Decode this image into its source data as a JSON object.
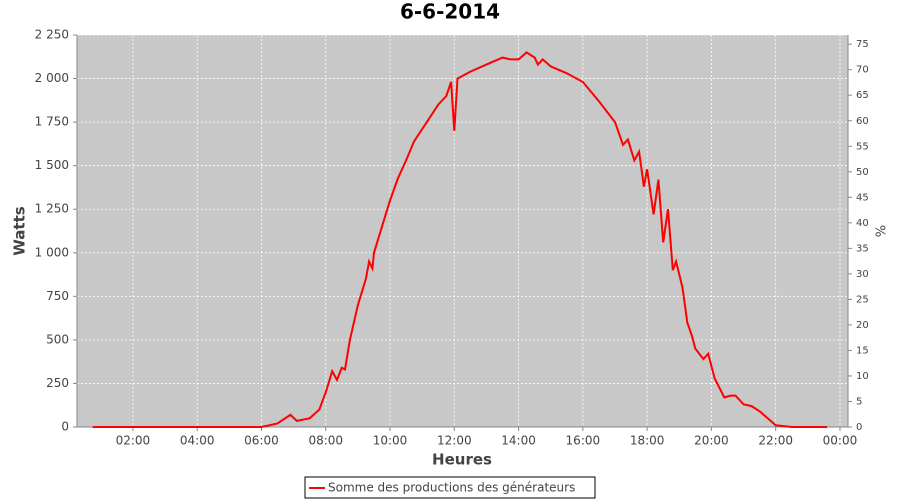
{
  "chart_data": {
    "type": "line",
    "title": "6-6-2014",
    "xlabel": "Heures",
    "ylabel": "Watts",
    "y2label": "%",
    "x": [
      0.75,
      2,
      3,
      4,
      5,
      6,
      6.5,
      6.9,
      7.1,
      7.5,
      7.8,
      8.0,
      8.2,
      8.35,
      8.5,
      8.6,
      8.75,
      9.0,
      9.25,
      9.35,
      9.45,
      9.5,
      9.75,
      10.0,
      10.25,
      10.5,
      10.75,
      11.0,
      11.25,
      11.5,
      11.75,
      11.9,
      12.0,
      12.1,
      12.5,
      13.0,
      13.5,
      13.75,
      14.0,
      14.25,
      14.5,
      14.6,
      14.75,
      15.0,
      15.5,
      16.0,
      16.5,
      17.0,
      17.25,
      17.4,
      17.6,
      17.75,
      17.9,
      18.0,
      18.2,
      18.35,
      18.5,
      18.65,
      18.8,
      18.9,
      19.1,
      19.25,
      19.4,
      19.5,
      19.75,
      19.9,
      20.1,
      20.4,
      20.6,
      20.75,
      21.0,
      21.25,
      21.5,
      21.75,
      22.0,
      22.5,
      23.6
    ],
    "series": [
      {
        "name": "Somme des productions des  générateurs",
        "color": "#ff0000",
        "values": [
          0,
          0,
          0,
          0,
          0,
          0,
          20,
          70,
          35,
          50,
          100,
          200,
          320,
          270,
          340,
          330,
          500,
          700,
          850,
          950,
          910,
          1000,
          1150,
          1300,
          1430,
          1530,
          1640,
          1710,
          1780,
          1850,
          1900,
          1980,
          1700,
          2000,
          2040,
          2080,
          2120,
          2110,
          2110,
          2150,
          2120,
          2080,
          2110,
          2070,
          2030,
          1980,
          1870,
          1750,
          1620,
          1650,
          1530,
          1580,
          1380,
          1480,
          1220,
          1420,
          1060,
          1250,
          900,
          950,
          800,
          600,
          520,
          450,
          390,
          420,
          280,
          170,
          180,
          180,
          130,
          120,
          90,
          50,
          10,
          0,
          0
        ]
      }
    ],
    "xlim": [
      0.26,
      24.25
    ],
    "xticks": [
      {
        "value": 2,
        "label": "02:00"
      },
      {
        "value": 4,
        "label": "04:00"
      },
      {
        "value": 6,
        "label": "06:00"
      },
      {
        "value": 8,
        "label": "08:00"
      },
      {
        "value": 10,
        "label": "10:00"
      },
      {
        "value": 12,
        "label": "12:00"
      },
      {
        "value": 14,
        "label": "14:00"
      },
      {
        "value": 16,
        "label": "16:00"
      },
      {
        "value": 18,
        "label": "18:00"
      },
      {
        "value": 20,
        "label": "20:00"
      },
      {
        "value": 22,
        "label": "22:00"
      },
      {
        "value": 24,
        "label": "00:00"
      }
    ],
    "ylim": [
      0,
      2250
    ],
    "yticks": [
      0,
      250,
      500,
      750,
      {
        "value": 1000,
        "label": "1 000"
      },
      {
        "value": 1250,
        "label": "1 250"
      },
      {
        "value": 1500,
        "label": "1 500"
      },
      {
        "value": 1750,
        "label": "1 750"
      },
      {
        "value": 2000,
        "label": "2 000"
      },
      {
        "value": 2250,
        "label": "2 250"
      }
    ],
    "y2lim": [
      0,
      76.8
    ],
    "y2ticks": [
      0,
      5,
      10,
      15,
      20,
      25,
      30,
      35,
      40,
      45,
      50,
      55,
      60,
      65,
      70,
      75
    ],
    "grid": true
  }
}
